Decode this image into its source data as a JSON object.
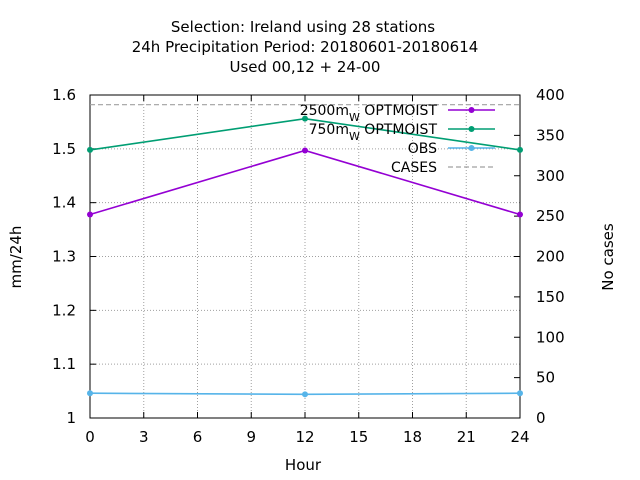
{
  "chart_data": {
    "type": "line",
    "title_lines": [
      "Selection: Ireland using    28 stations",
      "24h Precipitation    Period: 20180601-20180614",
      "Used  00,12  + 24-00"
    ],
    "xlabel": "Hour",
    "ylabel": "mm/24h",
    "y2label": "No cases",
    "xlim": [
      0,
      24
    ],
    "ylim": [
      1.0,
      1.6
    ],
    "y2lim": [
      0,
      400
    ],
    "xticks": [
      0,
      3,
      6,
      9,
      12,
      15,
      18,
      21,
      24
    ],
    "yticks": [
      "1",
      "1.1",
      "1.2",
      "1.3",
      "1.4",
      "1.5",
      "1.6"
    ],
    "y2ticks": [
      0,
      50,
      100,
      150,
      200,
      250,
      300,
      350,
      400
    ],
    "grid": true,
    "legend_position": "top-right",
    "series": [
      {
        "name": "2500m",
        "name_sub": "W",
        "name_rest": " OPTMOIST",
        "color": "#9400d3",
        "axis": "y",
        "marker": true,
        "x": [
          0,
          12,
          24
        ],
        "y": [
          1.378,
          1.497,
          1.378
        ]
      },
      {
        "name": "750m",
        "name_sub": "W",
        "name_rest": " OPTMOIST",
        "color": "#009e73",
        "axis": "y",
        "marker": true,
        "x": [
          0,
          12,
          24
        ],
        "y": [
          1.498,
          1.556,
          1.498
        ]
      },
      {
        "name": "OBS",
        "color": "#56b4e9",
        "axis": "y",
        "marker": true,
        "x": [
          0,
          12,
          24
        ],
        "y": [
          1.046,
          1.044,
          1.046
        ]
      },
      {
        "name": "CASES",
        "color": "#a0a0a0",
        "axis": "y2",
        "marker": false,
        "dashed": true,
        "x": [
          0,
          12,
          24
        ],
        "y": [
          388,
          388,
          388
        ]
      }
    ]
  }
}
